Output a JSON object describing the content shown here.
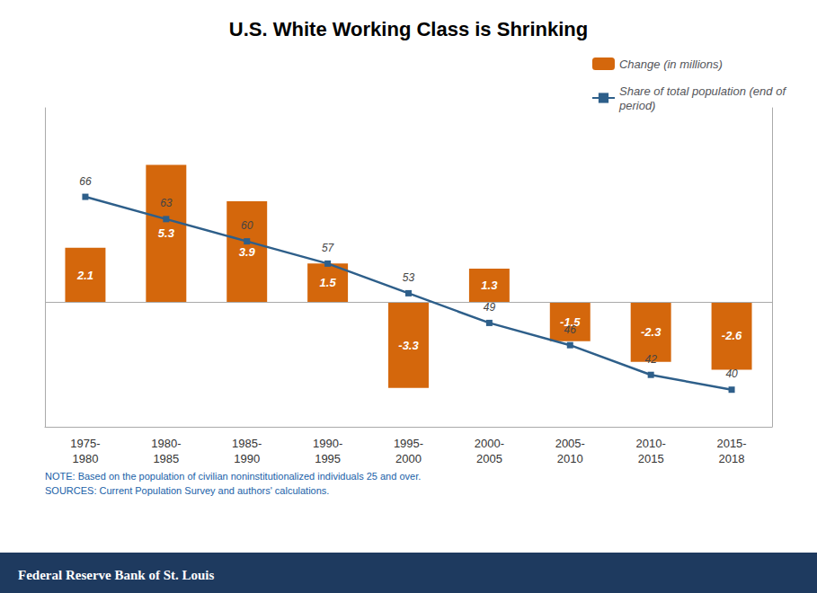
{
  "chart_data": {
    "type": "bar",
    "title": "U.S. White Working Class is Shrinking",
    "categories": [
      "1975-\n1980",
      "1980-\n1985",
      "1985-\n1990",
      "1990-\n1995",
      "1995-\n2000",
      "2000-\n2005",
      "2005-\n2010",
      "2010-\n2015",
      "2015-\n2018"
    ],
    "series": [
      {
        "name": "Change (in millions)",
        "type": "bar",
        "color": "#D4670C",
        "values": [
          2.1,
          5.3,
          3.9,
          1.5,
          -3.3,
          1.3,
          -1.5,
          -2.3,
          -2.6
        ]
      },
      {
        "name": "Share of total population (end of\nperiod)",
        "type": "line",
        "color": "#2E5F8A",
        "marker": "square",
        "axis": "y2",
        "values": [
          66,
          63,
          60,
          57,
          53,
          49,
          46,
          42,
          40
        ]
      }
    ],
    "ylim": [
      -4.8,
      7.5
    ],
    "y2lim": [
      35,
      78
    ],
    "tick_labels": "x",
    "data_labels": true,
    "grid": false,
    "legend": "upper right",
    "annotations": [
      "NOTE: Based on the population of civilian noninstitutionalized individuals 25 and over.\nSOURCES: Current Population Survey and authors' calculations.",
      "Federal Reserve Bank of St. Louis"
    ]
  }
}
